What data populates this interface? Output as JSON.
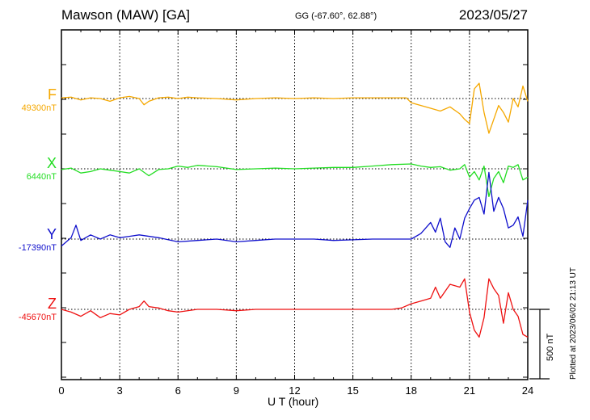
{
  "header": {
    "station": "Mawson (MAW)  [GA]",
    "coords": "GG (-67.60°,  62.88°)",
    "date": "2023/05/27"
  },
  "footer": {
    "plotted_note": "Plotted at 2023/06/02 21:13 UT",
    "scale_label": "500 nT"
  },
  "colors": {
    "F": "#f5a800",
    "X": "#22dd22",
    "Y": "#1010cc",
    "Z": "#ee1111"
  },
  "chart_data": {
    "type": "line",
    "title": "Mawson (MAW)  [GA]",
    "xlabel": "U T (hour)",
    "ylabel": "",
    "xlim": [
      0,
      24
    ],
    "x_ticks": [
      "0",
      "3",
      "6",
      "9",
      "12",
      "15",
      "18",
      "21",
      "24"
    ],
    "grid": true,
    "scale_bar_nT": 500,
    "series": [
      {
        "name": "F",
        "baseline_label": "49300nT",
        "x": [
          0,
          0.5,
          1,
          1.5,
          2,
          2.5,
          3,
          3.5,
          4,
          4.25,
          4.5,
          5,
          5.5,
          6,
          6.5,
          7,
          8,
          9,
          10,
          11,
          12,
          13,
          14,
          15,
          16,
          17,
          17.75,
          18,
          18.5,
          19,
          19.5,
          20,
          20.5,
          20.75,
          21,
          21.25,
          21.5,
          21.75,
          22,
          22.25,
          22.5,
          22.75,
          23,
          23.25,
          23.5,
          23.75,
          24
        ],
        "values": [
          5,
          10,
          -10,
          5,
          0,
          -20,
          5,
          15,
          0,
          -45,
          -20,
          5,
          10,
          0,
          10,
          5,
          0,
          -10,
          0,
          5,
          0,
          5,
          0,
          5,
          5,
          5,
          5,
          -30,
          -50,
          -70,
          -90,
          -60,
          -110,
          -150,
          -180,
          70,
          110,
          -100,
          -250,
          -150,
          -50,
          -100,
          -170,
          0,
          -60,
          90,
          -20
        ]
      },
      {
        "name": "X",
        "baseline_label": "6440nT",
        "x": [
          0,
          0.5,
          1,
          1.5,
          2,
          2.5,
          3,
          3.5,
          4,
          4.5,
          5,
          5.5,
          6,
          6.5,
          7,
          8,
          9,
          10,
          11,
          12,
          13,
          14,
          15,
          16,
          17,
          18,
          18.5,
          19,
          19.5,
          20,
          20.5,
          20.75,
          21,
          21.25,
          21.5,
          21.75,
          22,
          22.25,
          22.5,
          22.75,
          23,
          23.25,
          23.5,
          23.75,
          24
        ],
        "values": [
          -5,
          5,
          -30,
          -20,
          0,
          -10,
          -20,
          -30,
          0,
          -50,
          -5,
          0,
          20,
          10,
          25,
          15,
          -5,
          0,
          5,
          0,
          5,
          10,
          10,
          20,
          30,
          35,
          20,
          10,
          15,
          -10,
          0,
          30,
          -60,
          -20,
          -80,
          20,
          -200,
          -70,
          -20,
          -100,
          20,
          10,
          30,
          -80,
          -60
        ]
      },
      {
        "name": "Y",
        "baseline_label": "-17390nT",
        "x": [
          0,
          0.5,
          0.75,
          1,
          1.5,
          2,
          2.5,
          3,
          3.5,
          4,
          5,
          6,
          7,
          8,
          9,
          10,
          11,
          12,
          13,
          14,
          15,
          16,
          17,
          18,
          18.5,
          19,
          19.25,
          19.5,
          19.75,
          20,
          20.25,
          20.5,
          20.75,
          21,
          21.25,
          21.5,
          21.75,
          22,
          22.25,
          22.5,
          22.75,
          23,
          23.25,
          23.5,
          23.75,
          24
        ],
        "values": [
          -50,
          10,
          100,
          -10,
          30,
          0,
          30,
          10,
          20,
          30,
          10,
          -20,
          -10,
          0,
          -20,
          -10,
          0,
          0,
          0,
          -10,
          -5,
          0,
          0,
          0,
          40,
          120,
          50,
          150,
          -20,
          -60,
          80,
          0,
          150,
          220,
          280,
          300,
          180,
          480,
          200,
          300,
          220,
          80,
          100,
          160,
          20,
          280
        ]
      },
      {
        "name": "Z",
        "baseline_label": "-45670nT",
        "x": [
          0,
          0.5,
          1,
          1.5,
          2,
          2.5,
          3,
          3.5,
          4,
          4.25,
          4.5,
          5,
          5.5,
          6,
          7,
          8,
          9,
          10,
          11,
          12,
          13,
          14,
          15,
          16,
          17,
          17.5,
          18,
          18.5,
          19,
          19.25,
          19.5,
          20,
          20.5,
          20.75,
          21,
          21.25,
          21.5,
          21.75,
          22,
          22.25,
          22.5,
          22.75,
          23,
          23.25,
          23.5,
          23.75,
          24
        ],
        "values": [
          0,
          -20,
          -50,
          -10,
          -60,
          -30,
          -40,
          0,
          20,
          60,
          20,
          10,
          -10,
          -20,
          0,
          0,
          -10,
          0,
          0,
          0,
          0,
          0,
          0,
          0,
          0,
          10,
          40,
          60,
          80,
          160,
          80,
          180,
          160,
          220,
          -20,
          -150,
          -200,
          -60,
          220,
          150,
          100,
          -100,
          120,
          0,
          -50,
          -180,
          -200
        ]
      }
    ]
  }
}
